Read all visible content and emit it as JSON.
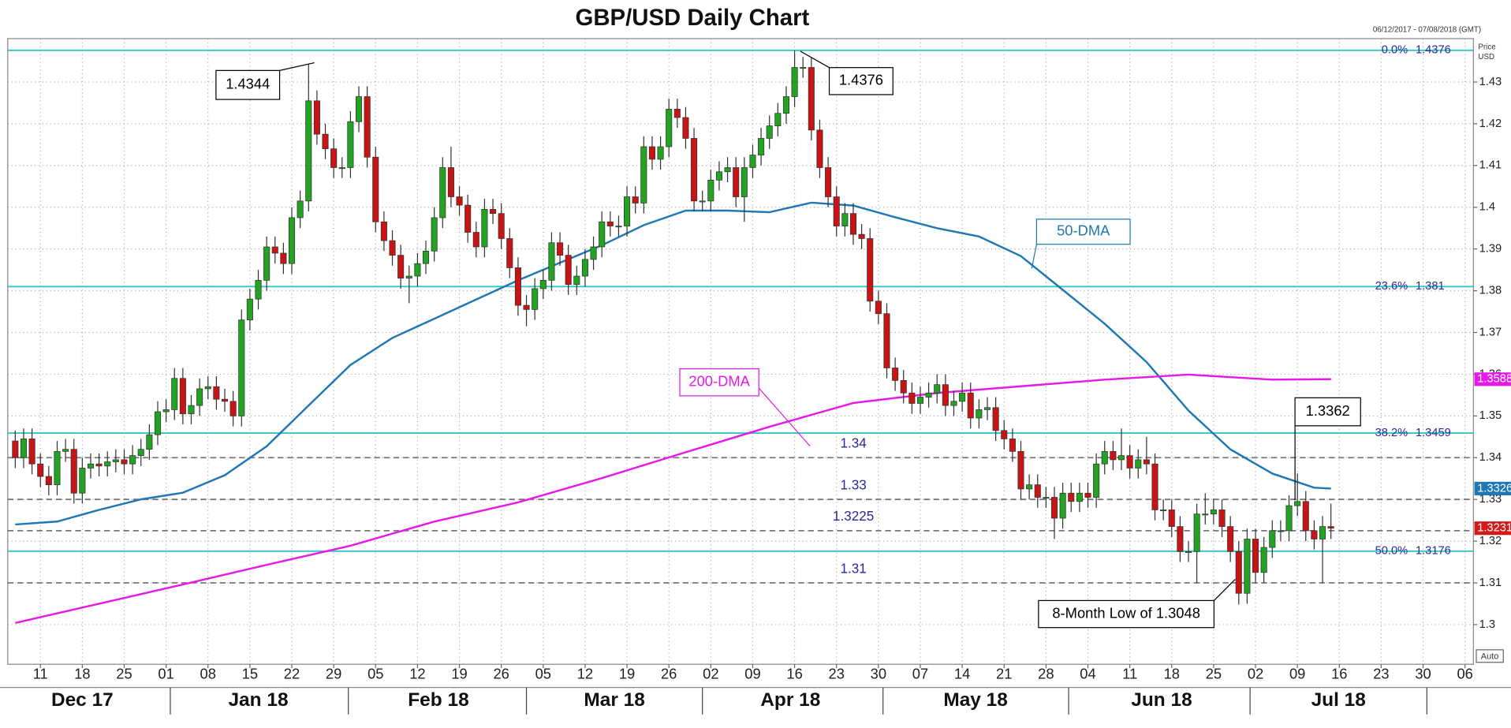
{
  "chart_data": {
    "type": "candlestick",
    "title": "GBP/USD Daily Chart",
    "date_range": "06/12/2017 - 07/08/2018 (GMT)",
    "axis_title": "Price",
    "axis_unit": "USD",
    "scale_mode": "Auto",
    "xlim": [
      -0.9,
      174
    ],
    "ylim": [
      1.2905,
      1.4404
    ],
    "yticks": [
      1.3,
      1.31,
      1.32,
      1.33,
      1.34,
      1.35,
      1.36,
      1.37,
      1.38,
      1.39,
      1.4,
      1.41,
      1.42,
      1.43
    ],
    "xticks": [
      {
        "value": 3,
        "label": "11"
      },
      {
        "value": 8,
        "label": "18"
      },
      {
        "value": 13,
        "label": "25"
      },
      {
        "value": 18,
        "label": "01"
      },
      {
        "value": 23,
        "label": "08"
      },
      {
        "value": 28,
        "label": "15"
      },
      {
        "value": 33,
        "label": "22"
      },
      {
        "value": 38,
        "label": "29"
      },
      {
        "value": 43,
        "label": "05"
      },
      {
        "value": 48,
        "label": "12"
      },
      {
        "value": 53,
        "label": "19"
      },
      {
        "value": 58,
        "label": "26"
      },
      {
        "value": 63,
        "label": "05"
      },
      {
        "value": 68,
        "label": "12"
      },
      {
        "value": 73,
        "label": "19"
      },
      {
        "value": 78,
        "label": "26"
      },
      {
        "value": 83,
        "label": "02"
      },
      {
        "value": 88,
        "label": "09"
      },
      {
        "value": 93,
        "label": "16"
      },
      {
        "value": 98,
        "label": "23"
      },
      {
        "value": 103,
        "label": "30"
      },
      {
        "value": 108,
        "label": "07"
      },
      {
        "value": 113,
        "label": "14"
      },
      {
        "value": 118,
        "label": "21"
      },
      {
        "value": 123,
        "label": "28"
      },
      {
        "value": 128,
        "label": "04"
      },
      {
        "value": 133,
        "label": "11"
      },
      {
        "value": 138,
        "label": "18"
      },
      {
        "value": 143,
        "label": "25"
      },
      {
        "value": 148,
        "label": "02"
      },
      {
        "value": 153,
        "label": "09"
      },
      {
        "value": 158,
        "label": "16"
      },
      {
        "value": 163,
        "label": "23"
      },
      {
        "value": 168,
        "label": "30"
      },
      {
        "value": 173,
        "label": "06"
      }
    ],
    "month_labels": [
      {
        "value": 8,
        "label": "Dec 17"
      },
      {
        "value": 29,
        "label": "Jan 18"
      },
      {
        "value": 50.5,
        "label": "Feb 18"
      },
      {
        "value": 71.5,
        "label": "Mar 18"
      },
      {
        "value": 92.5,
        "label": "Apr 18"
      },
      {
        "value": 114.6,
        "label": "May 18"
      },
      {
        "value": 136.8,
        "label": "Jun 18"
      },
      {
        "value": 157.9,
        "label": "Jul 18"
      }
    ],
    "grid": true,
    "up_color": "#22a322",
    "down_color": "#c81414",
    "open": [
      1.344,
      1.34,
      1.3445,
      1.3385,
      1.3355,
      1.3335,
      1.3415,
      1.342,
      1.3315,
      1.3375,
      1.3385,
      1.338,
      1.339,
      1.3395,
      1.3385,
      1.3405,
      1.342,
      1.3455,
      1.351,
      1.3515,
      1.359,
      1.3505,
      1.3525,
      1.3565,
      1.357,
      1.354,
      1.3535,
      1.35,
      1.373,
      1.378,
      1.3825,
      1.3905,
      1.389,
      1.3865,
      1.3975,
      1.4015,
      1.4255,
      1.4175,
      1.414,
      1.4095,
      1.4095,
      1.4205,
      1.4265,
      1.412,
      1.3965,
      1.392,
      1.3885,
      1.383,
      1.3835,
      1.3865,
      1.3895,
      1.3975,
      1.4095,
      1.4025,
      1.4005,
      1.394,
      1.3905,
      1.3995,
      1.3985,
      1.3925,
      1.3855,
      1.3765,
      1.3755,
      1.3805,
      1.3825,
      1.3915,
      1.3885,
      1.3815,
      1.3835,
      1.3875,
      1.3905,
      1.3965,
      1.3955,
      1.3955,
      1.4025,
      1.401,
      1.4145,
      1.4115,
      1.4145,
      1.4235,
      1.4215,
      1.4165,
      1.4015,
      1.4015,
      1.4065,
      1.4085,
      1.4095,
      1.4025,
      1.4095,
      1.4125,
      1.4165,
      1.4195,
      1.4225,
      1.4265,
      1.4335,
      1.4335,
      1.4185,
      1.4095,
      1.4025,
      1.3955,
      1.3985,
      1.3935,
      1.3925,
      1.3775,
      1.3745,
      1.3615,
      1.3585,
      1.3555,
      1.353,
      1.3545,
      1.3555,
      1.3575,
      1.3525,
      1.3535,
      1.3555,
      1.3495,
      1.3515,
      1.352,
      1.3465,
      1.3445,
      1.3415,
      1.3325,
      1.3335,
      1.3305,
      1.3305,
      1.3255,
      1.3315,
      1.3295,
      1.3315,
      1.3305,
      1.3385,
      1.3415,
      1.3395,
      1.3405,
      1.3375,
      1.3395,
      1.3385,
      1.3275,
      1.3275,
      1.3235,
      1.3175,
      1.3175,
      1.3265,
      1.3265,
      1.3275,
      1.3235,
      1.3175,
      1.3075,
      1.3205,
      1.3125,
      1.3185,
      1.3225,
      1.3225,
      1.3285,
      1.3295,
      1.3225,
      1.3205,
      1.3235
    ],
    "high": [
      1.3465,
      1.347,
      1.347,
      1.341,
      1.338,
      1.344,
      1.3445,
      1.3445,
      1.34,
      1.341,
      1.341,
      1.3415,
      1.342,
      1.342,
      1.343,
      1.3445,
      1.348,
      1.3535,
      1.354,
      1.3615,
      1.3615,
      1.355,
      1.359,
      1.3595,
      1.3595,
      1.3565,
      1.356,
      1.3755,
      1.3805,
      1.385,
      1.393,
      1.393,
      1.3915,
      1.4,
      1.404,
      1.4344,
      1.428,
      1.42,
      1.4165,
      1.412,
      1.423,
      1.429,
      1.429,
      1.4145,
      1.399,
      1.3945,
      1.391,
      1.386,
      1.389,
      1.392,
      1.4,
      1.412,
      1.4145,
      1.405,
      1.403,
      1.3965,
      1.402,
      1.402,
      1.401,
      1.395,
      1.388,
      1.379,
      1.383,
      1.385,
      1.394,
      1.394,
      1.391,
      1.386,
      1.39,
      1.393,
      1.399,
      1.399,
      1.398,
      1.405,
      1.405,
      1.417,
      1.417,
      1.417,
      1.426,
      1.426,
      1.424,
      1.419,
      1.404,
      1.409,
      1.411,
      1.412,
      1.412,
      1.412,
      1.415,
      1.419,
      1.422,
      1.425,
      1.429,
      1.4376,
      1.436,
      1.436,
      1.421,
      1.412,
      1.405,
      1.401,
      1.401,
      1.396,
      1.395,
      1.38,
      1.377,
      1.364,
      1.361,
      1.358,
      1.357,
      1.358,
      1.36,
      1.36,
      1.356,
      1.358,
      1.358,
      1.354,
      1.3545,
      1.3545,
      1.349,
      1.347,
      1.344,
      1.336,
      1.336,
      1.333,
      1.333,
      1.334,
      1.334,
      1.334,
      1.334,
      1.341,
      1.344,
      1.344,
      1.347,
      1.343,
      1.342,
      1.345,
      1.341,
      1.33,
      1.33,
      1.326,
      1.32,
      1.329,
      1.3315,
      1.33,
      1.33,
      1.326,
      1.32,
      1.323,
      1.323,
      1.321,
      1.325,
      1.325,
      1.331,
      1.3362,
      1.332,
      1.325,
      1.326,
      1.329
    ],
    "low": [
      1.3375,
      1.3375,
      1.336,
      1.333,
      1.331,
      1.331,
      1.339,
      1.329,
      1.329,
      1.335,
      1.3355,
      1.3355,
      1.3365,
      1.336,
      1.336,
      1.338,
      1.3395,
      1.343,
      1.3485,
      1.349,
      1.348,
      1.348,
      1.35,
      1.354,
      1.3515,
      1.351,
      1.3475,
      1.3475,
      1.3705,
      1.3755,
      1.38,
      1.3865,
      1.384,
      1.384,
      1.395,
      1.399,
      1.415,
      1.4115,
      1.407,
      1.407,
      1.407,
      1.418,
      1.4095,
      1.394,
      1.3895,
      1.386,
      1.3805,
      1.377,
      1.381,
      1.384,
      1.387,
      1.395,
      1.4,
      1.398,
      1.3915,
      1.388,
      1.388,
      1.396,
      1.39,
      1.383,
      1.374,
      1.3715,
      1.373,
      1.378,
      1.38,
      1.386,
      1.379,
      1.379,
      1.381,
      1.385,
      1.388,
      1.393,
      1.393,
      1.393,
      1.3985,
      1.3985,
      1.409,
      1.409,
      1.412,
      1.419,
      1.414,
      1.399,
      1.399,
      1.399,
      1.404,
      1.406,
      1.4,
      1.3965,
      1.407,
      1.41,
      1.414,
      1.417,
      1.42,
      1.424,
      1.431,
      1.416,
      1.407,
      1.4,
      1.393,
      1.393,
      1.391,
      1.39,
      1.375,
      1.372,
      1.359,
      1.356,
      1.353,
      1.3505,
      1.3505,
      1.352,
      1.353,
      1.35,
      1.35,
      1.351,
      1.347,
      1.347,
      1.349,
      1.344,
      1.342,
      1.339,
      1.33,
      1.33,
      1.328,
      1.328,
      1.3205,
      1.323,
      1.327,
      1.327,
      1.328,
      1.328,
      1.336,
      1.337,
      1.337,
      1.335,
      1.335,
      1.336,
      1.325,
      1.325,
      1.321,
      1.315,
      1.315,
      1.31,
      1.324,
      1.324,
      1.321,
      1.315,
      1.3048,
      1.305,
      1.31,
      1.31,
      1.316,
      1.32,
      1.32,
      1.326,
      1.32,
      1.318,
      1.31,
      1.3205
    ],
    "close": [
      1.34,
      1.3445,
      1.3385,
      1.3355,
      1.3335,
      1.3415,
      1.342,
      1.3315,
      1.3375,
      1.3385,
      1.338,
      1.339,
      1.3395,
      1.3385,
      1.3405,
      1.342,
      1.3455,
      1.351,
      1.3515,
      1.359,
      1.3505,
      1.3525,
      1.3565,
      1.357,
      1.354,
      1.3535,
      1.35,
      1.373,
      1.378,
      1.3825,
      1.3905,
      1.389,
      1.3865,
      1.3975,
      1.4015,
      1.4255,
      1.4175,
      1.414,
      1.4095,
      1.4095,
      1.4205,
      1.4265,
      1.412,
      1.3965,
      1.392,
      1.3885,
      1.383,
      1.3835,
      1.3865,
      1.3895,
      1.3975,
      1.4095,
      1.4025,
      1.4005,
      1.394,
      1.3905,
      1.3995,
      1.3985,
      1.3925,
      1.3855,
      1.3765,
      1.3755,
      1.3805,
      1.3825,
      1.3915,
      1.3885,
      1.3815,
      1.3835,
      1.3875,
      1.3905,
      1.3965,
      1.3955,
      1.3955,
      1.4025,
      1.401,
      1.4145,
      1.4115,
      1.4145,
      1.4235,
      1.4215,
      1.4165,
      1.4015,
      1.4015,
      1.4065,
      1.4085,
      1.4095,
      1.4025,
      1.4095,
      1.4125,
      1.4165,
      1.4195,
      1.4225,
      1.4265,
      1.4335,
      1.4335,
      1.4185,
      1.4095,
      1.4025,
      1.3955,
      1.3985,
      1.3935,
      1.3925,
      1.3775,
      1.3745,
      1.3615,
      1.3585,
      1.3555,
      1.353,
      1.3545,
      1.3555,
      1.3575,
      1.3525,
      1.3535,
      1.3555,
      1.3495,
      1.3515,
      1.352,
      1.3465,
      1.3445,
      1.3415,
      1.3325,
      1.3335,
      1.3305,
      1.3305,
      1.3255,
      1.3315,
      1.3295,
      1.3315,
      1.3305,
      1.3385,
      1.3415,
      1.3395,
      1.3405,
      1.3375,
      1.3395,
      1.3385,
      1.3275,
      1.3275,
      1.3235,
      1.3175,
      1.3175,
      1.3265,
      1.3265,
      1.3275,
      1.3235,
      1.3175,
      1.3075,
      1.3205,
      1.3125,
      1.3185,
      1.3225,
      1.3225,
      1.3285,
      1.3295,
      1.3225,
      1.3205,
      1.3235,
      1.3231
    ],
    "series": [
      {
        "name": "50-DMA",
        "color": "#1f78b4",
        "x": [
          0,
          5,
          10,
          15,
          20,
          25,
          30,
          35,
          40,
          45,
          50,
          55,
          60,
          65,
          70,
          75,
          80,
          85,
          90,
          95,
          100,
          105,
          110,
          115,
          120,
          125,
          130,
          135,
          140,
          145,
          150,
          155,
          157
        ],
        "values": [
          1.324,
          1.3247,
          1.3275,
          1.33,
          1.3316,
          1.3358,
          1.3427,
          1.3525,
          1.3622,
          1.3687,
          1.3733,
          1.3779,
          1.3825,
          1.3867,
          1.3909,
          1.3957,
          1.3992,
          1.3992,
          1.3988,
          1.4011,
          1.4004,
          1.3976,
          1.395,
          1.393,
          1.3883,
          1.3802,
          1.3721,
          1.3629,
          1.3513,
          1.342,
          1.3362,
          1.3328,
          1.3326
        ]
      },
      {
        "name": "200-DMA",
        "color": "#e619e6",
        "x": [
          0,
          10,
          20,
          30,
          40,
          50,
          60,
          70,
          80,
          90,
          100,
          110,
          120,
          130,
          140,
          150,
          157
        ],
        "values": [
          1.3004,
          1.305,
          1.3096,
          1.3143,
          1.3189,
          1.3247,
          1.3293,
          1.3351,
          1.3413,
          1.3474,
          1.3531,
          1.3555,
          1.3571,
          1.3587,
          1.3599,
          1.3587,
          1.3588
        ]
      }
    ],
    "fib_levels": [
      {
        "value": 1.4376,
        "label": "0.0%"
      },
      {
        "value": 1.381,
        "label": "23.6%"
      },
      {
        "value": 1.3459,
        "label": "38.2%"
      },
      {
        "value": 1.3176,
        "label": "50.0%"
      }
    ],
    "fib_color": "#33c6c6",
    "levels": [
      1.34,
      1.33,
      1.3225,
      1.31
    ],
    "price_tags": [
      {
        "value": 1.3326,
        "color": "#1f78b4"
      },
      {
        "value": 1.3588,
        "color": "#e619e6"
      },
      {
        "value": 1.3231,
        "color": "#d11a1a"
      }
    ],
    "annotations": [
      {
        "text": "1.4344"
      },
      {
        "text": "1.4376"
      },
      {
        "text": "1.3362"
      },
      {
        "text": "8-Month Low of 1.3048"
      },
      {
        "text": "50-DMA"
      },
      {
        "text": "200-DMA"
      }
    ]
  }
}
